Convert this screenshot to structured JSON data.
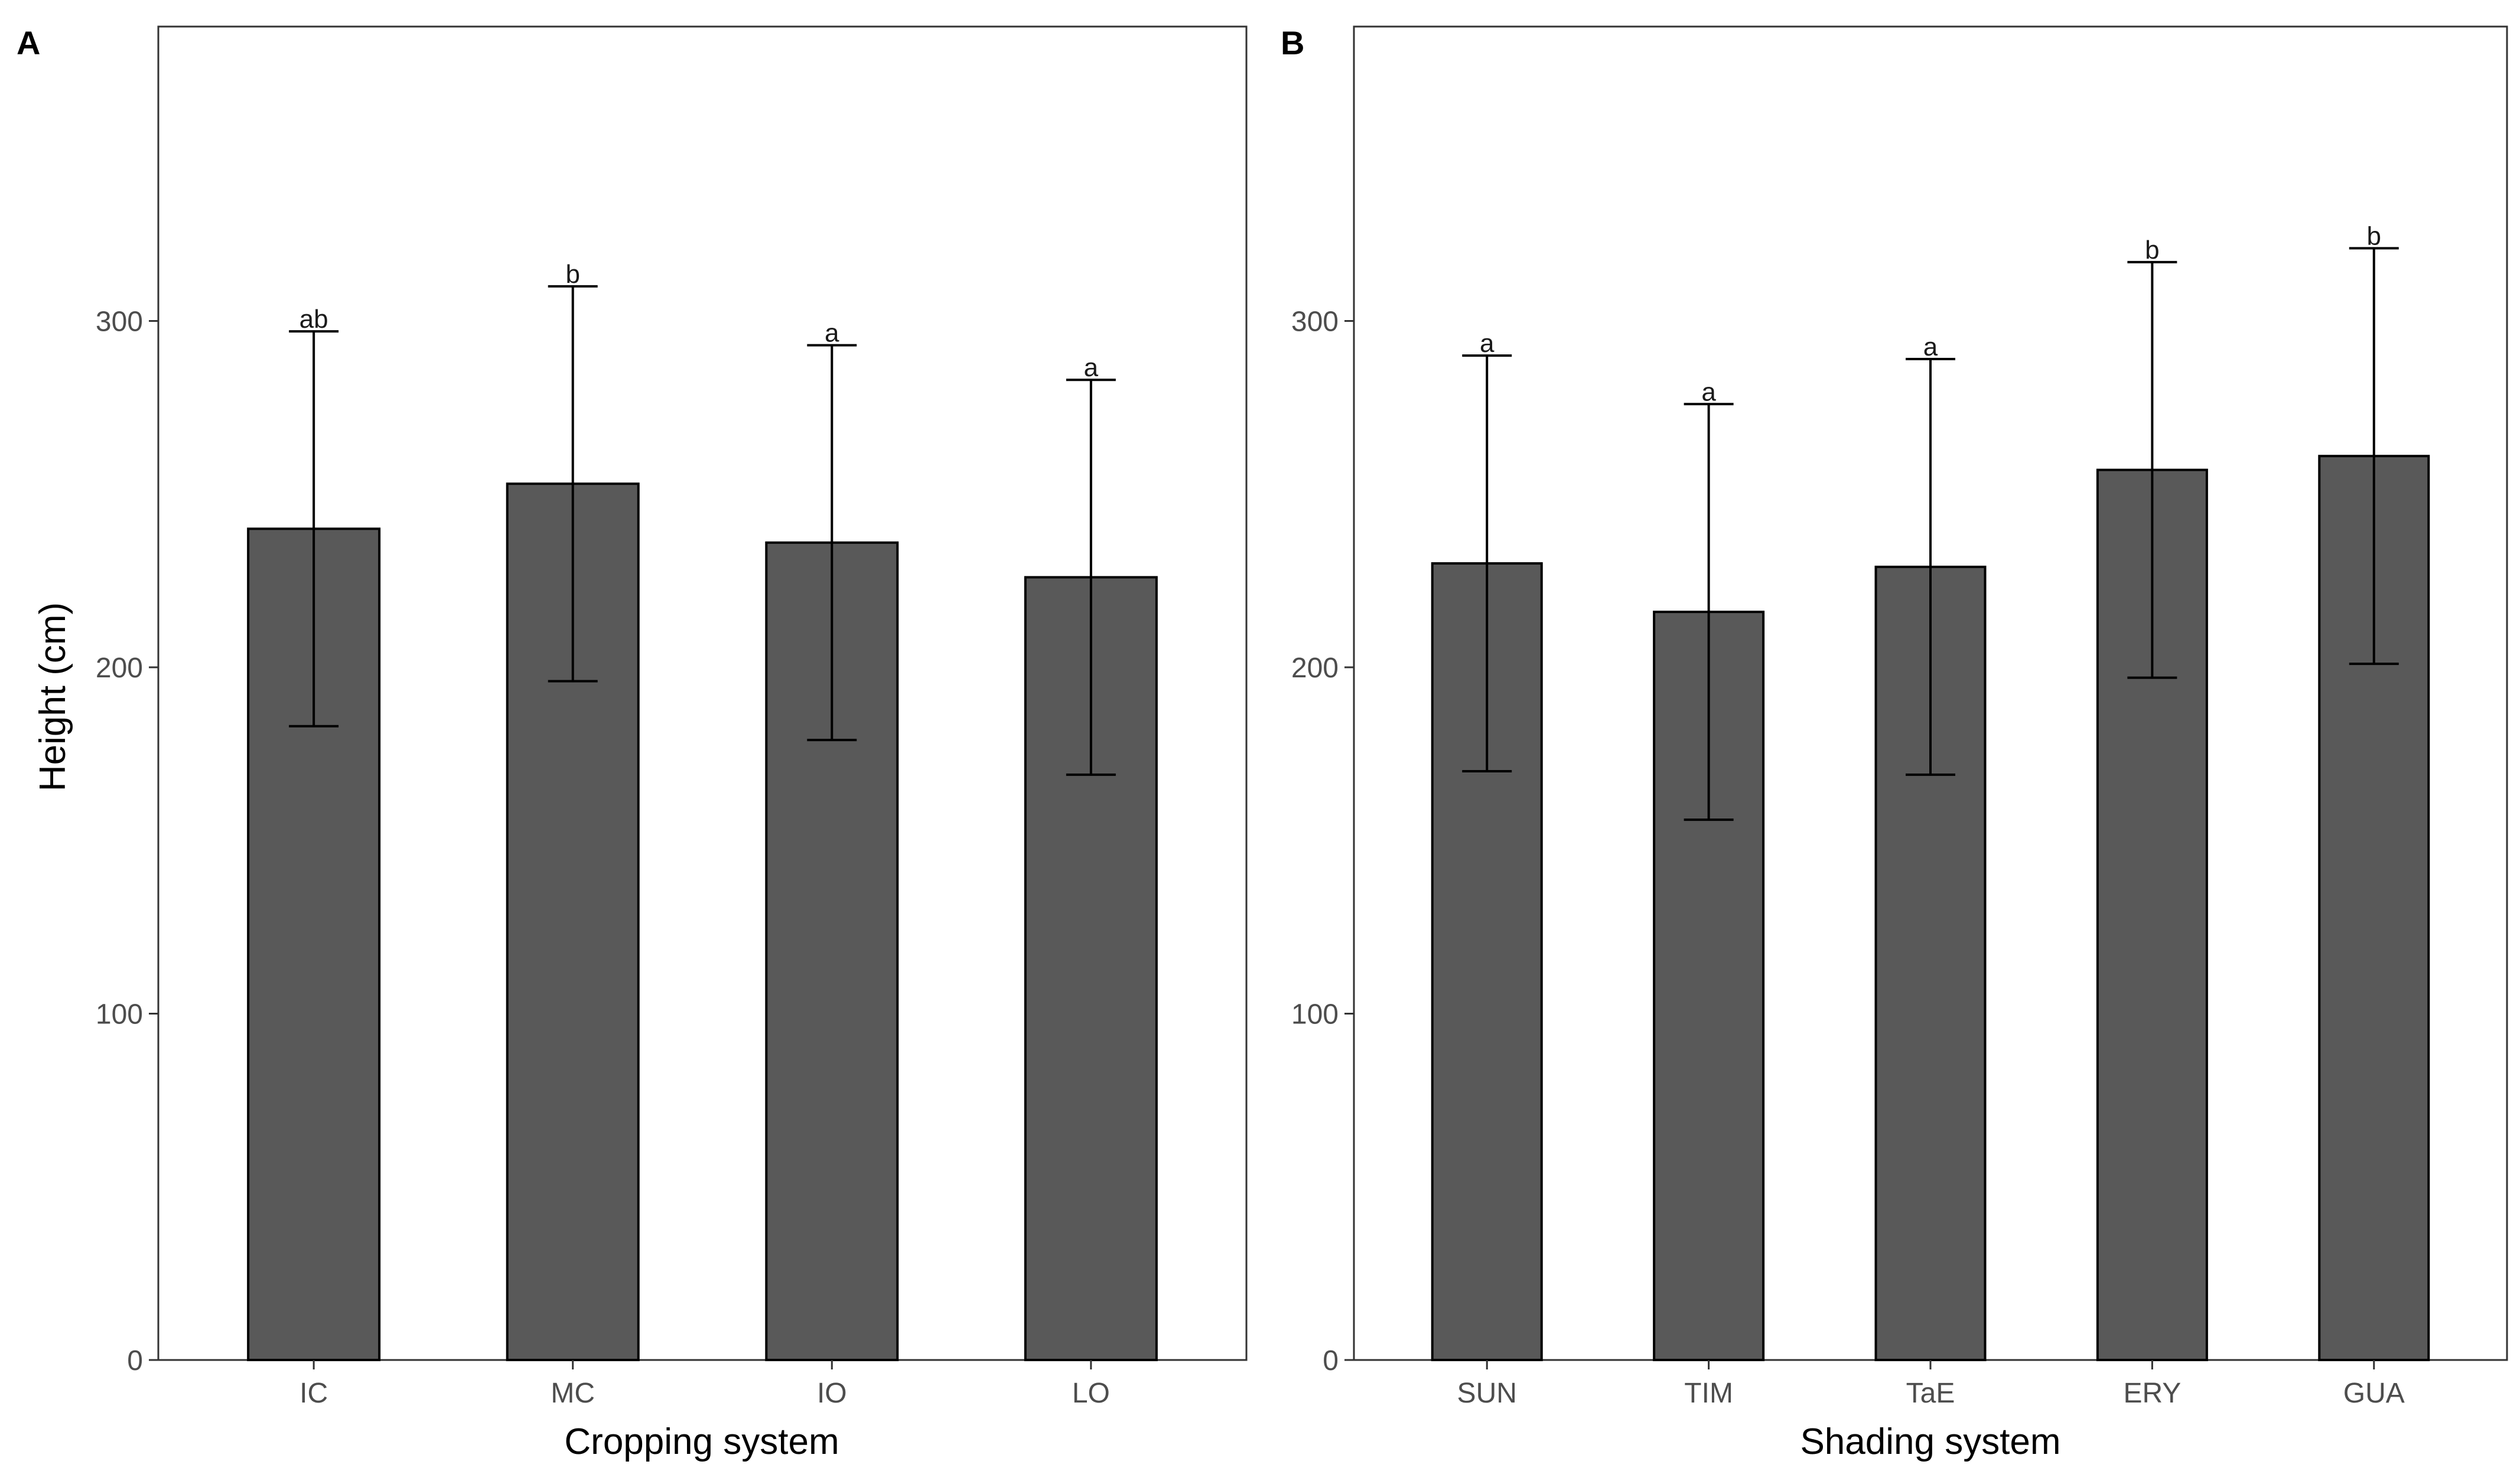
{
  "chart_data": [
    {
      "type": "bar",
      "panel_label": "A",
      "xlabel": "Cropping system",
      "ylabel": "Height (cm)",
      "categories": [
        "IC",
        "MC",
        "IO",
        "LO"
      ],
      "values": [
        240,
        253,
        236,
        226
      ],
      "errors": [
        57,
        57,
        57,
        57
      ],
      "significance": [
        "ab",
        "b",
        "a",
        "a"
      ],
      "ylim": [
        0,
        385
      ],
      "yticks": [
        "0",
        "100",
        "200",
        "300"
      ],
      "ytick_values": [
        0,
        100,
        200,
        300
      ],
      "grid": false
    },
    {
      "type": "bar",
      "panel_label": "B",
      "xlabel": "Shading system",
      "ylabel": "",
      "categories": [
        "SUN",
        "TIM",
        "TaE",
        "ERY",
        "GUA"
      ],
      "values": [
        230,
        216,
        229,
        257,
        261
      ],
      "errors": [
        60,
        60,
        60,
        60,
        60
      ],
      "significance": [
        "a",
        "a",
        "a",
        "b",
        "b"
      ],
      "ylim": [
        0,
        385
      ],
      "yticks": [
        "0",
        "100",
        "200",
        "300"
      ],
      "ytick_values": [
        0,
        100,
        200,
        300
      ],
      "grid": false
    }
  ]
}
